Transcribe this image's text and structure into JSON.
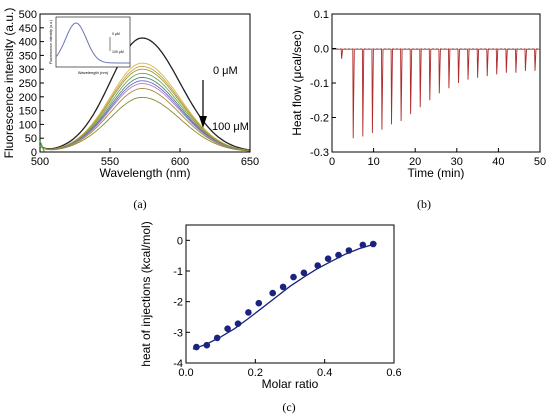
{
  "chart_data": [
    {
      "type": "line",
      "panel_label": "(a)",
      "xlabel": "Wavelength (nm)",
      "ylabel": "Fluorescence intensity (a.u.)",
      "xlim": [
        500,
        650
      ],
      "ylim": [
        0,
        500
      ],
      "xticks": [
        500,
        550,
        600,
        650
      ],
      "yticks": [
        0,
        50,
        100,
        150,
        200,
        250,
        300,
        350,
        400,
        450,
        500
      ],
      "annotation_top": "0 μM",
      "annotation_bottom": "100 μM",
      "peak_x": 573,
      "baseline_at_500": 20,
      "peak_values": [
        413,
        322,
        310,
        300,
        285,
        270,
        258,
        248,
        230,
        198
      ],
      "series_colors": [
        "#222222",
        "#d6b94a",
        "#c9a24a",
        "#9d9d3c",
        "#7aa25a",
        "#4f8c6e",
        "#6a6acb",
        "#b37fc9",
        "#a58a3a",
        "#8b8b2e"
      ],
      "inset": {
        "xlabel": "Wavelength (nm)",
        "ylabel": "Fluorescence intensity (a.u.)",
        "annotation_top": "0 μM",
        "annotation_bottom": "100 μM",
        "color": "#6b77b4"
      }
    },
    {
      "type": "line",
      "panel_label": "(b)",
      "xlabel": "Time (min)",
      "ylabel": "Heat flow (μcal/sec)",
      "xlim": [
        0,
        50
      ],
      "ylim": [
        -0.3,
        0.1
      ],
      "xticks": [
        0,
        10,
        20,
        30,
        40,
        50
      ],
      "yticks": [
        0.1,
        0,
        -0.1,
        -0.2,
        -0.3
      ],
      "baseline": -0.002,
      "injection_times": [
        2.2,
        5.0,
        7.3,
        9.6,
        11.9,
        14.2,
        16.5,
        18.8,
        21.1,
        23.4,
        25.7,
        28.0,
        30.3,
        32.6,
        34.9,
        37.2,
        39.5,
        41.8,
        44.1,
        46.4,
        48.7
      ],
      "peak_depths": [
        -0.03,
        -0.26,
        -0.255,
        -0.245,
        -0.235,
        -0.22,
        -0.21,
        -0.19,
        -0.17,
        -0.15,
        -0.13,
        -0.115,
        -0.1,
        -0.09,
        -0.085,
        -0.08,
        -0.075,
        -0.07,
        -0.07,
        -0.065,
        -0.065
      ],
      "color": "#b02a2a"
    },
    {
      "type": "scatter",
      "panel_label": "(c)",
      "xlabel": "Molar ratio",
      "ylabel": "heat of injections (kcal/mol)",
      "xlim": [
        0,
        0.6
      ],
      "ylim": [
        -4,
        0.5
      ],
      "xticks": [
        0.0,
        0.2,
        0.4,
        0.6
      ],
      "yticks": [
        0,
        -1,
        -2,
        -3,
        -4
      ],
      "x": [
        0.03,
        0.06,
        0.09,
        0.12,
        0.15,
        0.18,
        0.21,
        0.25,
        0.28,
        0.31,
        0.34,
        0.38,
        0.41,
        0.44,
        0.47,
        0.51,
        0.54
      ],
      "y": [
        -3.48,
        -3.42,
        -3.18,
        -2.88,
        -2.72,
        -2.35,
        -2.05,
        -1.72,
        -1.52,
        -1.2,
        -1.06,
        -0.82,
        -0.6,
        -0.48,
        -0.33,
        -0.15,
        -0.12
      ],
      "fit_x": [
        0.02,
        0.06,
        0.1,
        0.14,
        0.18,
        0.22,
        0.26,
        0.3,
        0.34,
        0.38,
        0.42,
        0.46,
        0.5,
        0.55
      ],
      "fit_y": [
        -3.55,
        -3.38,
        -3.15,
        -2.88,
        -2.55,
        -2.2,
        -1.85,
        -1.5,
        -1.2,
        -0.92,
        -0.68,
        -0.45,
        -0.27,
        -0.1
      ],
      "color": "#1a237e"
    }
  ]
}
